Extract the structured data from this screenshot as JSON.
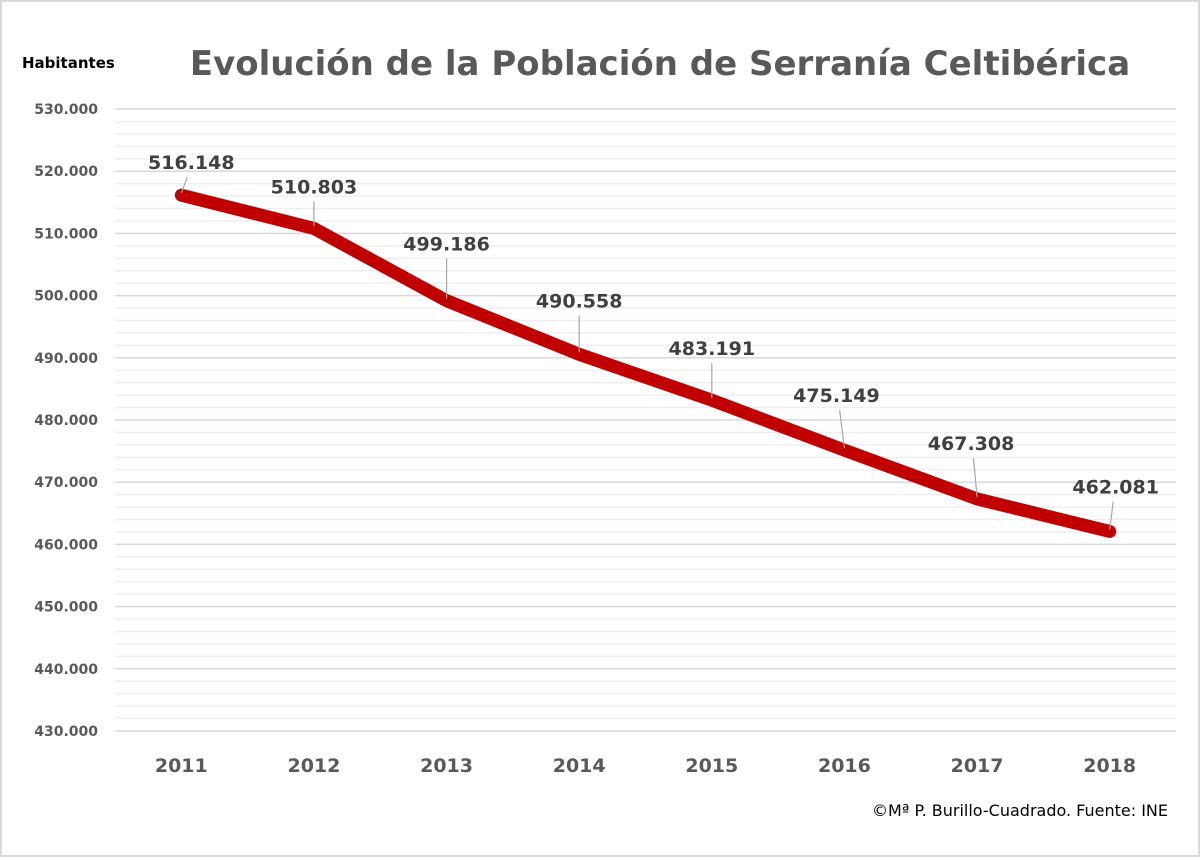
{
  "chart_data": {
    "type": "line",
    "title": "Evolución de la Población de Serranía Celtibérica",
    "xlabel": "",
    "ylabel": "Habitantes",
    "categories": [
      "2011",
      "2012",
      "2013",
      "2014",
      "2015",
      "2016",
      "2017",
      "2018"
    ],
    "series": [
      {
        "name": "Población",
        "values": [
          516148,
          510803,
          499186,
          490558,
          483191,
          475149,
          467308,
          462081
        ],
        "labels": [
          "516.148",
          "510.803",
          "499.186",
          "490.558",
          "483.191",
          "475.149",
          "467.308",
          "462.081"
        ],
        "color": "#c00000"
      }
    ],
    "ylim": [
      430000,
      530000
    ],
    "y_major_step": 10000,
    "y_minor_step": 2000,
    "y_ticks": [
      "530.000",
      "520.000",
      "510.000",
      "500.000",
      "490.000",
      "480.000",
      "470.000",
      "460.000",
      "450.000",
      "440.000",
      "430.000"
    ],
    "grid": true,
    "legend": "none",
    "credit": "©Mª P. Burillo-Cuadrado. Fuente: INE"
  },
  "colors": {
    "line": "#c00000",
    "major_grid": "#d9d9d9",
    "minor_grid": "#efefef",
    "text": "#595959",
    "leader": "#a6a6a6"
  }
}
